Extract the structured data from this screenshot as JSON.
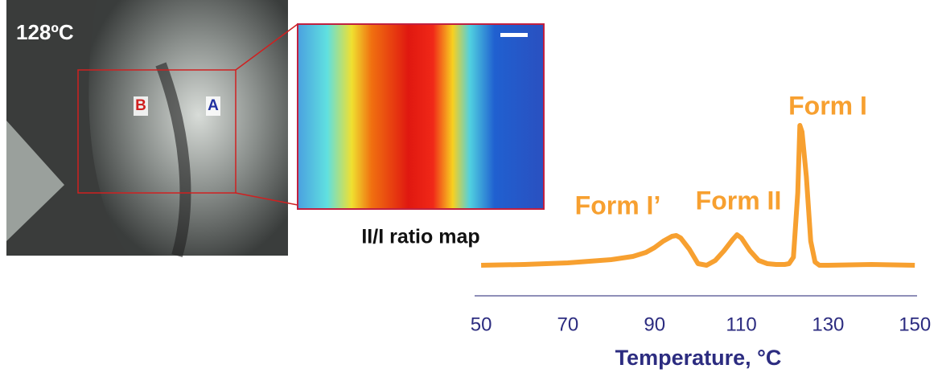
{
  "micrograph": {
    "temperature": "128ºC",
    "labels": [
      "B",
      "A"
    ]
  },
  "ratio_map": {
    "caption": "II/I ratio map"
  },
  "chart_data": {
    "type": "line",
    "xlabel": "Temperature, °C",
    "x": [
      50,
      60,
      70,
      80,
      85,
      88,
      90,
      92,
      94,
      95,
      96,
      98,
      100,
      102,
      104,
      106,
      108,
      109,
      110,
      112,
      114,
      116,
      118,
      120,
      121,
      122,
      123,
      123.5,
      124,
      125,
      126,
      127,
      128,
      130,
      140,
      150
    ],
    "values": [
      5,
      5.5,
      6.5,
      8.5,
      10.5,
      13,
      16,
      20,
      23,
      23.5,
      22,
      15,
      6,
      5,
      8,
      14,
      21,
      24,
      22,
      14,
      8,
      6,
      5.5,
      5.5,
      6,
      10,
      50,
      92,
      88,
      60,
      20,
      7,
      5,
      5,
      5.5,
      5
    ],
    "color": "#f7a030",
    "xlim": [
      48.5,
      152
    ],
    "ylim": [
      0,
      100
    ],
    "xticks": [
      50,
      70,
      90,
      110,
      130,
      150
    ],
    "annotations": [
      "Form I’",
      "Form II",
      "Form I"
    ]
  }
}
